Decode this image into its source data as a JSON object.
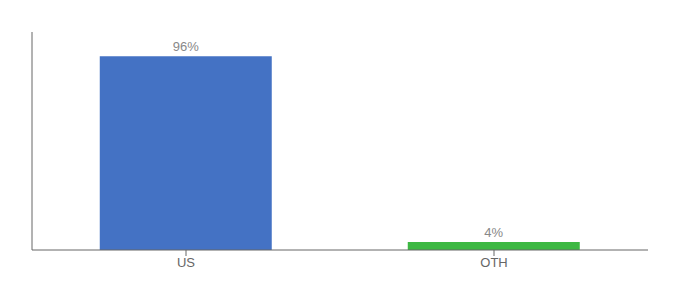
{
  "chart_data": {
    "type": "bar",
    "categories": [
      "US",
      "OTH"
    ],
    "values": [
      96,
      4
    ],
    "colors": [
      "#4472c4",
      "#3db843"
    ],
    "ylim": [
      0,
      108
    ],
    "data_labels": true,
    "value_labels": [
      "96%",
      "4%"
    ],
    "tick_labels": "x"
  }
}
